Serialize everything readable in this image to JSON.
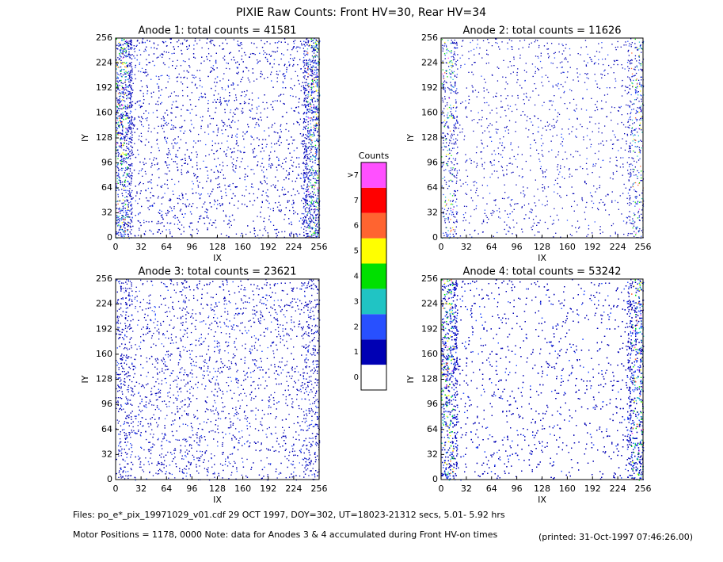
{
  "title": "PIXIE Raw Counts:  Front HV=30, Rear HV=34",
  "chart_data": [
    {
      "type": "heatmap",
      "title": "Anode 1: total counts = 41581",
      "xlabel": "IX",
      "ylabel": "IY",
      "xlim": [
        0,
        256
      ],
      "ylim": [
        0,
        256
      ],
      "xticks": [
        0,
        32,
        64,
        96,
        128,
        160,
        192,
        224,
        256
      ],
      "yticks": [
        0,
        32,
        64,
        96,
        128,
        160,
        192,
        224,
        256
      ]
    },
    {
      "type": "heatmap",
      "title": "Anode 2: total counts = 11626",
      "xlabel": "IX",
      "ylabel": "IY",
      "xlim": [
        0,
        256
      ],
      "ylim": [
        0,
        256
      ],
      "xticks": [
        0,
        32,
        64,
        96,
        128,
        160,
        192,
        224,
        256
      ],
      "yticks": [
        0,
        32,
        64,
        96,
        128,
        160,
        192,
        224,
        256
      ]
    },
    {
      "type": "heatmap",
      "title": "Anode 3: total counts = 23621",
      "xlabel": "IX",
      "ylabel": "IY",
      "xlim": [
        0,
        256
      ],
      "ylim": [
        0,
        256
      ],
      "xticks": [
        0,
        32,
        64,
        96,
        128,
        160,
        192,
        224,
        256
      ],
      "yticks": [
        0,
        32,
        64,
        96,
        128,
        160,
        192,
        224,
        256
      ]
    },
    {
      "type": "heatmap",
      "title": "Anode 4: total counts = 53242",
      "xlabel": "IX",
      "ylabel": "IY",
      "xlim": [
        0,
        256
      ],
      "ylim": [
        0,
        256
      ],
      "xticks": [
        0,
        32,
        64,
        96,
        128,
        160,
        192,
        224,
        256
      ],
      "yticks": [
        0,
        32,
        64,
        96,
        128,
        160,
        192,
        224,
        256
      ]
    }
  ],
  "colorbar": {
    "title": "Counts",
    "categories": [
      "0",
      "1",
      "2",
      "3",
      "4",
      "5",
      "6",
      "7",
      ">7"
    ],
    "colors": [
      "#ffffff",
      "#0000b4",
      "#2850ff",
      "#20c4c4",
      "#00e000",
      "#ffff00",
      "#ff6430",
      "#ff0000",
      "#ff50ff"
    ]
  },
  "footer": {
    "files": "Files: po_e*_pix_19971029_v01.cdf    29 OCT 1997, DOY=302, UT=18023-21312 secs,  5.01- 5.92 hrs",
    "motor": "Motor Positions = 1178, 0000    Note: data for Anodes 3 & 4 accumulated during Front HV-on times",
    "printed": "(printed: 31-Oct-1997 07:46:26.00)"
  }
}
